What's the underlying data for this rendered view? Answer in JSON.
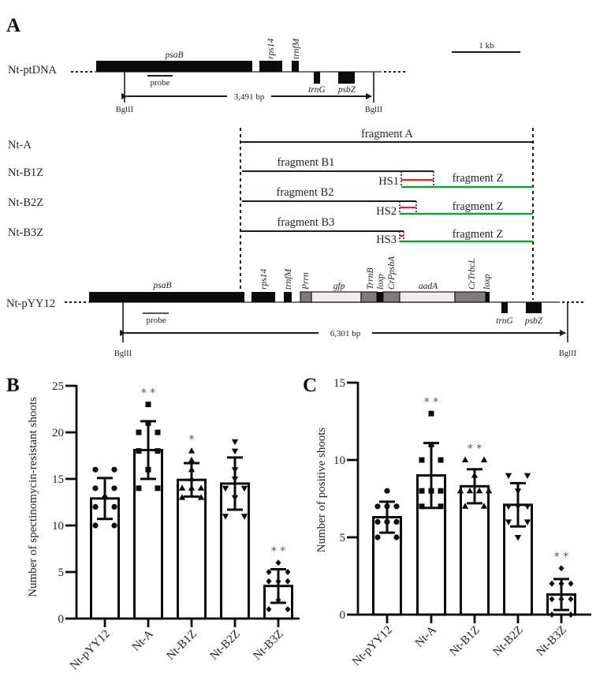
{
  "panel_labels": {
    "a": "A",
    "b": "B",
    "c": "C"
  },
  "colors": {
    "gene_block": "#0b0b0b",
    "promoter_terminator": "#7d7b7b",
    "coding_insert": "#eeeeee",
    "homologous_sequence": "#e2232a",
    "fragment_z": "#1e9a3c"
  },
  "panel_a": {
    "scale_bar": "1 kb",
    "ptdna": {
      "label": "Nt-ptDNA",
      "genes": {
        "psaB": "psaB",
        "rps14": "rps14",
        "trnfM": "trnfM",
        "trnG": "trnG",
        "psbZ": "psbZ"
      },
      "probe": "probe",
      "site_left": "BglII",
      "site_right": "BglII",
      "fragment_length": "3,491 bp"
    },
    "constructs": {
      "rows": [
        "Nt-A",
        "Nt-B1Z",
        "Nt-B2Z",
        "Nt-B3Z"
      ],
      "fragment_a": "fragment A",
      "fragment_b1": "fragment B1",
      "fragment_b2": "fragment B2",
      "fragment_b3": "fragment B3",
      "fragment_z": "fragment Z",
      "hs1": "HS1",
      "hs2": "HS2",
      "hs3": "HS3"
    },
    "pyy12": {
      "label": "Nt-pYY12",
      "genes": {
        "psaB": "psaB",
        "rps14": "rps14",
        "trnfM": "trnfM",
        "Prrn": "Prrn",
        "gfp": "gfp",
        "TrrnB": "TrrnB",
        "loxp1": "loxp",
        "CrPpsbA": "CrPpsbA",
        "aadA": "aadA",
        "CrTrbcL": "CrTrbcL",
        "loxp2": "loxp",
        "trnG": "trnG",
        "psbZ": "psbZ"
      },
      "probe": "probe",
      "site_left": "BglII",
      "site_right": "BglII",
      "fragment_length": "6,301 bp"
    }
  },
  "chart_data": [
    {
      "type": "bar",
      "panel": "B",
      "title": "",
      "xlabel": "",
      "ylabel": "Number of spectinomycin-resistant shoots",
      "categories": [
        "Nt-pYY12",
        "Nt-A",
        "Nt-B1Z",
        "Nt-B2Z",
        "Nt-B3Z"
      ],
      "values": [
        12.9,
        18.1,
        14.9,
        14.5,
        3.5
      ],
      "error_sd": [
        2.2,
        3.1,
        1.8,
        2.8,
        1.8
      ],
      "points": [
        [
          16,
          16,
          14,
          14,
          13,
          12,
          12,
          10,
          10
        ],
        [
          23,
          21,
          20,
          20,
          18,
          18,
          16,
          14,
          14
        ],
        [
          18,
          17,
          16,
          15,
          14,
          14,
          14,
          13,
          13
        ],
        [
          19,
          18,
          16,
          15,
          14,
          14,
          13,
          11,
          11
        ],
        [
          6,
          5,
          5,
          4,
          4,
          4,
          2,
          1,
          1
        ]
      ],
      "markers": [
        "circle",
        "square",
        "triangle-up",
        "triangle-down",
        "diamond"
      ],
      "significance": [
        "",
        "**",
        "*",
        "",
        "**"
      ],
      "ylim": [
        0,
        25
      ],
      "yticks": [
        0,
        5,
        10,
        15,
        20,
        25
      ],
      "grid": false,
      "legend": "none"
    },
    {
      "type": "bar",
      "panel": "C",
      "title": "",
      "xlabel": "",
      "ylabel": "Number of positive shoots",
      "categories": [
        "Nt-pYY12",
        "Nt-A",
        "Nt-B1Z",
        "Nt-B2Z",
        "Nt-B3Z"
      ],
      "values": [
        6.3,
        9.0,
        8.3,
        7.1,
        1.3
      ],
      "error_sd": [
        1.0,
        2.1,
        1.1,
        1.4,
        1.0
      ],
      "points": [
        [
          8,
          7,
          7,
          7,
          6,
          6,
          6,
          5,
          5
        ],
        [
          13,
          11,
          10,
          10,
          8,
          8,
          8,
          7,
          7
        ],
        [
          10,
          10,
          9,
          8,
          8,
          8,
          8,
          7,
          7
        ],
        [
          9,
          9,
          8,
          7,
          7,
          7,
          6,
          6,
          5
        ],
        [
          3,
          2,
          2,
          2,
          1,
          1,
          1,
          0,
          0
        ]
      ],
      "markers": [
        "circle",
        "square",
        "triangle-up",
        "triangle-down",
        "diamond"
      ],
      "significance": [
        "",
        "**",
        "**",
        "",
        "**"
      ],
      "ylim": [
        0,
        15
      ],
      "yticks": [
        0,
        5,
        10,
        15
      ],
      "grid": false,
      "legend": "none"
    }
  ]
}
